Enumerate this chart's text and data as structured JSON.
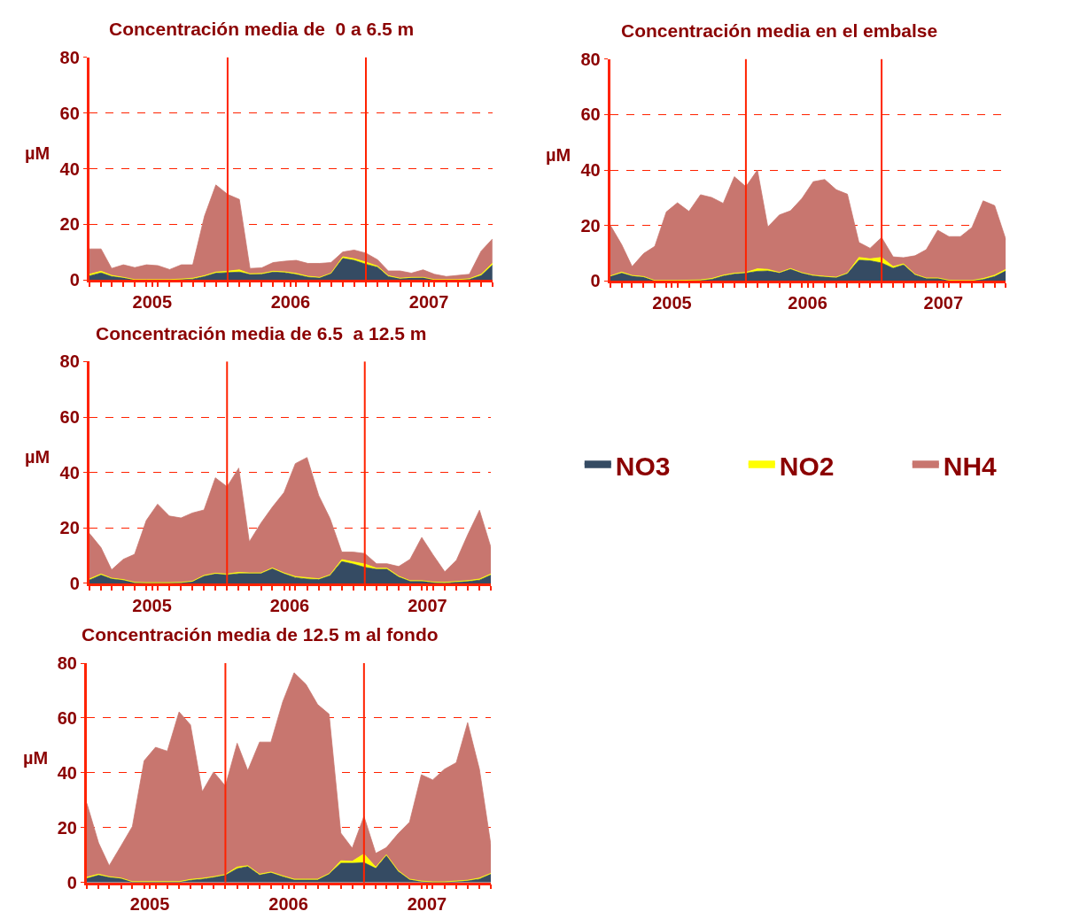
{
  "chart_data": [
    {
      "type": "area",
      "title": "Concentración media de  0 a 6.5 m",
      "ylabel": "µM",
      "stacked": true,
      "grid": "y",
      "legend": "right",
      "x": [
        "2005-01",
        "2005-02",
        "2005-03",
        "2005-04",
        "2005-05",
        "2005-06",
        "2005-07",
        "2005-08",
        "2005-09",
        "2005-10",
        "2005-11",
        "2005-12",
        "2006-01",
        "2006-02",
        "2006-03",
        "2006-04",
        "2006-05",
        "2006-06",
        "2006-07",
        "2006-08",
        "2006-09",
        "2006-10",
        "2006-11",
        "2006-12",
        "2007-01",
        "2007-02",
        "2007-03",
        "2007-04",
        "2007-05",
        "2007-06",
        "2007-07",
        "2007-08",
        "2007-09",
        "2007-10",
        "2007-11",
        "2007-12"
      ],
      "xlim": [
        "2005-01",
        "2007-12"
      ],
      "xticks": [
        {
          "value": "2005-01",
          "label": null
        },
        {
          "value": "2005-02",
          "label": null
        },
        {
          "value": "2005-03",
          "label": null
        },
        {
          "value": "2005-04",
          "label": null
        },
        {
          "value": "2005-05",
          "label": null
        },
        {
          "value": "2005-06",
          "label": null
        },
        {
          "value": "2005-07",
          "label": null
        },
        {
          "value": "2005-08",
          "label": null
        },
        {
          "value": "2005-09",
          "label": null
        },
        {
          "value": "2005-10",
          "label": null
        },
        {
          "value": "2005-11",
          "label": null
        },
        {
          "value": "2005-12",
          "label": null
        },
        {
          "value": "2006-01",
          "label": null
        },
        {
          "value": "2006-02",
          "label": null
        },
        {
          "value": "2006-03",
          "label": null
        },
        {
          "value": "2006-04",
          "label": null
        },
        {
          "value": "2006-05",
          "label": null
        },
        {
          "value": "2006-06",
          "label": null
        },
        {
          "value": "2006-07",
          "label": null
        },
        {
          "value": "2006-08",
          "label": null
        },
        {
          "value": "2006-09",
          "label": null
        },
        {
          "value": "2006-10",
          "label": null
        },
        {
          "value": "2006-11",
          "label": null
        },
        {
          "value": "2006-12",
          "label": null
        },
        {
          "value": "2007-01",
          "label": null
        },
        {
          "value": "2007-02",
          "label": null
        },
        {
          "value": "2007-03",
          "label": null
        },
        {
          "value": "2007-04",
          "label": null
        },
        {
          "value": "2007-05",
          "label": null
        },
        {
          "value": "2007-06",
          "label": null
        },
        {
          "value": "2007-07",
          "label": null
        },
        {
          "value": "2007-08",
          "label": null
        },
        {
          "value": "2007-09",
          "label": null
        },
        {
          "value": "2007-10",
          "label": null
        },
        {
          "value": "2007-11",
          "label": null
        },
        {
          "value": "2007-12",
          "label": null
        },
        {
          "value": "2005-06-16",
          "label": "2005"
        },
        {
          "value": "2006-06-16",
          "label": "2006"
        },
        {
          "value": "2007-06-16",
          "label": "2007"
        }
      ],
      "ylim": [
        0,
        80
      ],
      "yticks": [
        0,
        20,
        40,
        60,
        80
      ],
      "ref_lines": [
        {
          "axis": "x",
          "value": "2006-01",
          "color": "#ff2200"
        },
        {
          "axis": "x",
          "value": "2007-01",
          "color": "#ff2200"
        }
      ],
      "series": [
        {
          "name": "NO3",
          "color": "#354b63",
          "values": [
            1.5,
            2.6,
            1.3,
            0.8,
            0.1,
            0.1,
            0.1,
            0.1,
            0.2,
            0.4,
            1.3,
            2.5,
            2.7,
            2.9,
            2.0,
            2.1,
            2.9,
            2.7,
            2.0,
            1.1,
            0.8,
            2.4,
            7.8,
            7.1,
            5.7,
            4.6,
            1.3,
            0.5,
            0.8,
            0.9,
            0.1,
            0.1,
            0.1,
            0.3,
            1.6,
            5.4
          ]
        },
        {
          "name": "NO2",
          "color": "#ffff00",
          "values": [
            0.6,
            0.6,
            0.4,
            0.2,
            0.1,
            0.1,
            0.1,
            0.1,
            0.2,
            0.3,
            0.3,
            0.4,
            0.5,
            0.8,
            0.3,
            0.3,
            0.3,
            0.3,
            0.4,
            0.3,
            0.2,
            0.1,
            0.6,
            0.6,
            0.8,
            0.4,
            0.3,
            0.2,
            0.2,
            0.1,
            0.1,
            0.1,
            0.1,
            0.2,
            0.5,
            0.7
          ]
        },
        {
          "name": "NH4",
          "color": "#c8766f",
          "values": [
            9.1,
            8.0,
            2.5,
            4.5,
            4.3,
            5.3,
            5.0,
            3.6,
            5.1,
            4.8,
            21.4,
            31.3,
            27.6,
            25.3,
            1.9,
            2.0,
            3.1,
            3.8,
            4.7,
            4.6,
            5.0,
            3.8,
            1.7,
            3.1,
            3.2,
            2.3,
            1.7,
            2.6,
            1.5,
            2.7,
            1.9,
            1.1,
            1.5,
            1.6,
            8.3,
            8.7
          ]
        }
      ]
    },
    {
      "type": "area",
      "title": "Concentración media en el embalse",
      "ylabel": "µM",
      "stacked": true,
      "grid": "y",
      "x": [
        "2005-01",
        "2005-02",
        "2005-03",
        "2005-04",
        "2005-05",
        "2005-06",
        "2005-07",
        "2005-08",
        "2005-09",
        "2005-10",
        "2005-11",
        "2005-12",
        "2006-01",
        "2006-02",
        "2006-03",
        "2006-04",
        "2006-05",
        "2006-06",
        "2006-07",
        "2006-08",
        "2006-09",
        "2006-10",
        "2006-11",
        "2006-12",
        "2007-01",
        "2007-02",
        "2007-03",
        "2007-04",
        "2007-05",
        "2007-06",
        "2007-07",
        "2007-08",
        "2007-09",
        "2007-10",
        "2007-11",
        "2007-12"
      ],
      "xlim": [
        "2005-01",
        "2007-12"
      ],
      "xticks": [
        {
          "value": "2005-01",
          "label": null
        },
        {
          "value": "2005-02",
          "label": null
        },
        {
          "value": "2005-03",
          "label": null
        },
        {
          "value": "2005-04",
          "label": null
        },
        {
          "value": "2005-05",
          "label": null
        },
        {
          "value": "2005-06",
          "label": null
        },
        {
          "value": "2005-07",
          "label": null
        },
        {
          "value": "2005-08",
          "label": null
        },
        {
          "value": "2005-09",
          "label": null
        },
        {
          "value": "2005-10",
          "label": null
        },
        {
          "value": "2005-11",
          "label": null
        },
        {
          "value": "2005-12",
          "label": null
        },
        {
          "value": "2006-01",
          "label": null
        },
        {
          "value": "2006-02",
          "label": null
        },
        {
          "value": "2006-03",
          "label": null
        },
        {
          "value": "2006-04",
          "label": null
        },
        {
          "value": "2006-05",
          "label": null
        },
        {
          "value": "2006-06",
          "label": null
        },
        {
          "value": "2006-07",
          "label": null
        },
        {
          "value": "2006-08",
          "label": null
        },
        {
          "value": "2006-09",
          "label": null
        },
        {
          "value": "2006-10",
          "label": null
        },
        {
          "value": "2006-11",
          "label": null
        },
        {
          "value": "2006-12",
          "label": null
        },
        {
          "value": "2007-01",
          "label": null
        },
        {
          "value": "2007-02",
          "label": null
        },
        {
          "value": "2007-03",
          "label": null
        },
        {
          "value": "2007-04",
          "label": null
        },
        {
          "value": "2007-05",
          "label": null
        },
        {
          "value": "2007-06",
          "label": null
        },
        {
          "value": "2007-07",
          "label": null
        },
        {
          "value": "2007-08",
          "label": null
        },
        {
          "value": "2007-09",
          "label": null
        },
        {
          "value": "2007-10",
          "label": null
        },
        {
          "value": "2007-11",
          "label": null
        },
        {
          "value": "2007-12",
          "label": null
        },
        {
          "value": "2005-06-16",
          "label": "2005"
        },
        {
          "value": "2006-06-16",
          "label": "2006"
        },
        {
          "value": "2007-06-16",
          "label": "2007"
        }
      ],
      "ylim": [
        0,
        80
      ],
      "yticks": [
        0,
        20,
        40,
        60,
        80
      ],
      "ref_lines": [
        {
          "axis": "x",
          "value": "2006-01",
          "color": "#ff2200"
        },
        {
          "axis": "x",
          "value": "2007-01",
          "color": "#ff2200"
        }
      ],
      "series": [
        {
          "color": "#354b63",
          "values": [
            1.6,
            2.8,
            1.8,
            1.4,
            0.1,
            0.1,
            0.1,
            0.2,
            0.2,
            0.6,
            1.8,
            2.5,
            2.8,
            3.5,
            3.6,
            2.9,
            4.3,
            2.8,
            1.9,
            1.5,
            1.2,
            2.7,
            7.5,
            7.3,
            6.5,
            4.6,
            5.8,
            2.2,
            1.0,
            1.0,
            0.2,
            0.1,
            0.1,
            0.5,
            1.6,
            3.6
          ]
        },
        {
          "color": "#ffff00",
          "values": [
            0.2,
            0.4,
            0.2,
            0.2,
            0.1,
            0.1,
            0.1,
            0.1,
            0.2,
            0.3,
            0.3,
            0.3,
            0.3,
            0.9,
            0.6,
            0.2,
            0.2,
            0.2,
            0.2,
            0.2,
            0.2,
            0.2,
            1.0,
            0.7,
            2.0,
            0.6,
            0.4,
            0.2,
            0.1,
            0.1,
            0.1,
            0.1,
            0.1,
            0.4,
            0.5,
            0.6
          ]
        },
        {
          "color": "#c8766f",
          "values": [
            18.4,
            9.9,
            3.2,
            8.3,
            12.3,
            24.7,
            28.0,
            24.8,
            30.7,
            29.2,
            25.9,
            34.8,
            30.9,
            35.6,
            15.3,
            20.7,
            20.8,
            26.8,
            33.7,
            34.9,
            31.5,
            28.4,
            5.4,
            3.8,
            7.2,
            3.5,
            2.2,
            6.7,
            10.2,
            17.2,
            15.7,
            15.8,
            19.1,
            28.0,
            25.1,
            10.8
          ]
        }
      ]
    },
    {
      "type": "area",
      "title": "Concentración media de 6.5  a 12.5 m",
      "ylabel": "µM",
      "stacked": true,
      "grid": "y",
      "x": [
        "2005-01",
        "2005-02",
        "2005-03",
        "2005-04",
        "2005-05",
        "2005-06",
        "2005-07",
        "2005-08",
        "2005-09",
        "2005-10",
        "2005-11",
        "2005-12",
        "2006-01",
        "2006-02",
        "2006-03",
        "2006-04",
        "2006-05",
        "2006-06",
        "2006-07",
        "2006-08",
        "2006-09",
        "2006-10",
        "2006-11",
        "2006-12",
        "2007-01",
        "2007-02",
        "2007-03",
        "2007-04",
        "2007-05",
        "2007-06",
        "2007-07",
        "2007-08",
        "2007-09",
        "2007-10",
        "2007-11",
        "2007-12"
      ],
      "xlim": [
        "2005-01",
        "2007-12"
      ],
      "xticks": [
        {
          "value": "2005-01",
          "label": null
        },
        {
          "value": "2005-02",
          "label": null
        },
        {
          "value": "2005-03",
          "label": null
        },
        {
          "value": "2005-04",
          "label": null
        },
        {
          "value": "2005-05",
          "label": null
        },
        {
          "value": "2005-06",
          "label": null
        },
        {
          "value": "2005-07",
          "label": null
        },
        {
          "value": "2005-08",
          "label": null
        },
        {
          "value": "2005-09",
          "label": null
        },
        {
          "value": "2005-10",
          "label": null
        },
        {
          "value": "2005-11",
          "label": null
        },
        {
          "value": "2005-12",
          "label": null
        },
        {
          "value": "2006-01",
          "label": null
        },
        {
          "value": "2006-02",
          "label": null
        },
        {
          "value": "2006-03",
          "label": null
        },
        {
          "value": "2006-04",
          "label": null
        },
        {
          "value": "2006-05",
          "label": null
        },
        {
          "value": "2006-06",
          "label": null
        },
        {
          "value": "2006-07",
          "label": null
        },
        {
          "value": "2006-08",
          "label": null
        },
        {
          "value": "2006-09",
          "label": null
        },
        {
          "value": "2006-10",
          "label": null
        },
        {
          "value": "2006-11",
          "label": null
        },
        {
          "value": "2006-12",
          "label": null
        },
        {
          "value": "2007-01",
          "label": null
        },
        {
          "value": "2007-02",
          "label": null
        },
        {
          "value": "2007-03",
          "label": null
        },
        {
          "value": "2007-04",
          "label": null
        },
        {
          "value": "2007-05",
          "label": null
        },
        {
          "value": "2007-06",
          "label": null
        },
        {
          "value": "2007-07",
          "label": null
        },
        {
          "value": "2007-08",
          "label": null
        },
        {
          "value": "2007-09",
          "label": null
        },
        {
          "value": "2007-10",
          "label": null
        },
        {
          "value": "2007-11",
          "label": null
        },
        {
          "value": "2007-12",
          "label": null
        },
        {
          "value": "2005-06-16",
          "label": "2005"
        },
        {
          "value": "2006-06-16",
          "label": "2006"
        },
        {
          "value": "2007-06-16",
          "label": "2007"
        }
      ],
      "ylim": [
        0,
        80
      ],
      "yticks": [
        0,
        20,
        40,
        60,
        80
      ],
      "ref_lines": [
        {
          "axis": "x",
          "value": "2006-01",
          "color": "#ff2200"
        },
        {
          "axis": "x",
          "value": "2007-01",
          "color": "#ff2200"
        }
      ],
      "series": [
        {
          "color": "#354b63",
          "values": [
            1.2,
            3.0,
            1.7,
            1.2,
            0.2,
            0.1,
            0.1,
            0.1,
            0.2,
            0.6,
            2.6,
            3.4,
            3.1,
            3.5,
            3.6,
            3.6,
            5.3,
            3.5,
            2.1,
            1.6,
            1.4,
            2.9,
            7.9,
            7.0,
            5.8,
            5.1,
            5.1,
            2.3,
            0.9,
            0.9,
            0.3,
            0.1,
            0.5,
            0.7,
            1.2,
            3.0
          ]
        },
        {
          "color": "#ffff00",
          "values": [
            0.4,
            0.4,
            0.2,
            0.2,
            0.2,
            0.2,
            0.2,
            0.2,
            0.2,
            0.2,
            0.3,
            0.3,
            0.3,
            0.5,
            0.2,
            0.2,
            0.3,
            0.3,
            0.4,
            0.5,
            0.3,
            0.2,
            0.7,
            0.8,
            1.2,
            0.4,
            0.4,
            0.3,
            0.1,
            0.1,
            0.2,
            0.3,
            0.2,
            0.3,
            0.4,
            0.4
          ]
        },
        {
          "color": "#c8766f",
          "values": [
            16.5,
            9.5,
            3.0,
            7.3,
            10.1,
            22.4,
            28.3,
            24.0,
            23.2,
            24.6,
            23.6,
            34.4,
            31.5,
            37.6,
            11.2,
            18.0,
            21.9,
            29.0,
            40.7,
            43.3,
            30.0,
            20.3,
            2.7,
            3.5,
            3.8,
            1.6,
            1.6,
            3.5,
            7.7,
            15.6,
            9.8,
            3.8,
            7.7,
            16.6,
            24.8,
            9.7
          ]
        }
      ]
    },
    {
      "type": "area",
      "title": "Concentración media de 12.5 m al fondo",
      "ylabel": "µM",
      "stacked": true,
      "grid": "y",
      "x": [
        "2005-01",
        "2005-02",
        "2005-03",
        "2005-04",
        "2005-05",
        "2005-06",
        "2005-07",
        "2005-08",
        "2005-09",
        "2005-10",
        "2005-11",
        "2005-12",
        "2006-01",
        "2006-02",
        "2006-03",
        "2006-04",
        "2006-05",
        "2006-06",
        "2006-07",
        "2006-08",
        "2006-09",
        "2006-10",
        "2006-11",
        "2006-12",
        "2007-01",
        "2007-02",
        "2007-03",
        "2007-04",
        "2007-05",
        "2007-06",
        "2007-07",
        "2007-08",
        "2007-09",
        "2007-10",
        "2007-11",
        "2007-12"
      ],
      "xlim": [
        "2005-01",
        "2007-12"
      ],
      "xticks": [
        {
          "value": "2005-01",
          "label": null
        },
        {
          "value": "2005-02",
          "label": null
        },
        {
          "value": "2005-03",
          "label": null
        },
        {
          "value": "2005-04",
          "label": null
        },
        {
          "value": "2005-05",
          "label": null
        },
        {
          "value": "2005-06",
          "label": null
        },
        {
          "value": "2005-07",
          "label": null
        },
        {
          "value": "2005-08",
          "label": null
        },
        {
          "value": "2005-09",
          "label": null
        },
        {
          "value": "2005-10",
          "label": null
        },
        {
          "value": "2005-11",
          "label": null
        },
        {
          "value": "2005-12",
          "label": null
        },
        {
          "value": "2006-01",
          "label": null
        },
        {
          "value": "2006-02",
          "label": null
        },
        {
          "value": "2006-03",
          "label": null
        },
        {
          "value": "2006-04",
          "label": null
        },
        {
          "value": "2006-05",
          "label": null
        },
        {
          "value": "2006-06",
          "label": null
        },
        {
          "value": "2006-07",
          "label": null
        },
        {
          "value": "2006-08",
          "label": null
        },
        {
          "value": "2006-09",
          "label": null
        },
        {
          "value": "2006-10",
          "label": null
        },
        {
          "value": "2006-11",
          "label": null
        },
        {
          "value": "2006-12",
          "label": null
        },
        {
          "value": "2007-01",
          "label": null
        },
        {
          "value": "2007-02",
          "label": null
        },
        {
          "value": "2007-03",
          "label": null
        },
        {
          "value": "2007-04",
          "label": null
        },
        {
          "value": "2007-05",
          "label": null
        },
        {
          "value": "2007-06",
          "label": null
        },
        {
          "value": "2007-07",
          "label": null
        },
        {
          "value": "2007-08",
          "label": null
        },
        {
          "value": "2007-09",
          "label": null
        },
        {
          "value": "2007-10",
          "label": null
        },
        {
          "value": "2007-11",
          "label": null
        },
        {
          "value": "2007-12",
          "label": null
        },
        {
          "value": "2005-06-16",
          "label": "2005"
        },
        {
          "value": "2006-06-16",
          "label": "2006"
        },
        {
          "value": "2007-06-16",
          "label": "2007"
        }
      ],
      "ylim": [
        0,
        80
      ],
      "yticks": [
        0,
        20,
        40,
        60,
        80
      ],
      "ref_lines": [
        {
          "axis": "x",
          "value": "2006-01",
          "color": "#ff2200"
        },
        {
          "axis": "x",
          "value": "2007-01",
          "color": "#ff2200"
        }
      ],
      "series": [
        {
          "color": "#354b63",
          "values": [
            1.4,
            2.6,
            1.8,
            1.4,
            0.1,
            0.1,
            0.1,
            0.1,
            0.1,
            0.8,
            1.2,
            1.8,
            2.6,
            5.0,
            5.8,
            2.7,
            3.5,
            2.1,
            0.9,
            0.9,
            0.9,
            3.0,
            7.0,
            7.0,
            7.2,
            5.1,
            9.8,
            4.0,
            1.0,
            0.3,
            0.1,
            0.1,
            0.3,
            0.6,
            1.2,
            3.0
          ]
        },
        {
          "color": "#ffff00",
          "values": [
            0.5,
            0.4,
            0.3,
            0.2,
            0.2,
            0.2,
            0.2,
            0.2,
            0.2,
            0.3,
            0.3,
            0.3,
            0.3,
            0.6,
            0.3,
            0.3,
            0.3,
            0.3,
            0.3,
            0.3,
            0.3,
            0.2,
            0.9,
            0.7,
            3.2,
            0.5,
            0.3,
            0.3,
            0.2,
            0.2,
            0.1,
            0.1,
            0.2,
            0.2,
            0.4,
            0.3
          ]
        },
        {
          "color": "#c8766f",
          "values": [
            27.0,
            11.4,
            4.0,
            11.7,
            20.1,
            44.1,
            49.0,
            47.6,
            61.9,
            56.4,
            31.6,
            38.2,
            32.3,
            45.2,
            34.7,
            48.2,
            47.4,
            63.5,
            75.3,
            71.1,
            63.7,
            58.2,
            10.1,
            4.8,
            13.7,
            5.0,
            2.6,
            13.5,
            20.8,
            38.8,
            37.2,
            41.1,
            43.2,
            57.5,
            39.7,
            10.5
          ]
        }
      ]
    }
  ]
}
